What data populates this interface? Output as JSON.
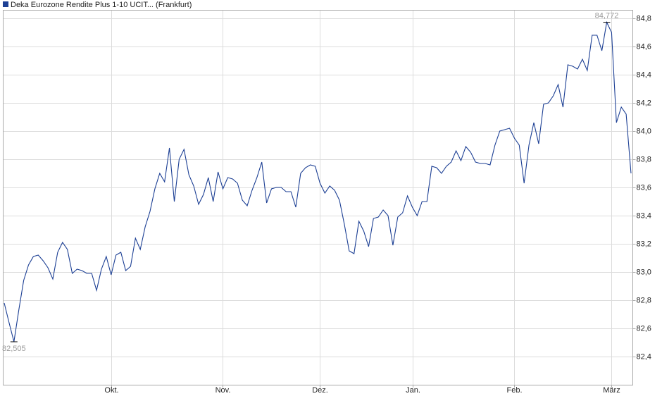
{
  "chart_data": {
    "type": "line",
    "series": [
      {
        "name": "Deka Eurozone Rendite Plus 1-10 UCIT... (Frankfurt)",
        "color": "#1c3f94",
        "values": [
          82.78,
          82.64,
          82.505,
          82.73,
          82.94,
          83.05,
          83.11,
          83.12,
          83.08,
          83.03,
          82.95,
          83.14,
          83.21,
          83.16,
          82.99,
          83.02,
          83.01,
          82.99,
          82.99,
          82.87,
          83.02,
          83.11,
          82.98,
          83.12,
          83.14,
          83.01,
          83.04,
          83.24,
          83.16,
          83.32,
          83.43,
          83.59,
          83.7,
          83.64,
          83.88,
          83.5,
          83.8,
          83.87,
          83.69,
          83.61,
          83.48,
          83.55,
          83.67,
          83.5,
          83.71,
          83.59,
          83.67,
          83.66,
          83.63,
          83.51,
          83.47,
          83.58,
          83.67,
          83.78,
          83.49,
          83.59,
          83.6,
          83.6,
          83.57,
          83.57,
          83.46,
          83.7,
          83.74,
          83.76,
          83.75,
          83.63,
          83.56,
          83.61,
          83.58,
          83.51,
          83.34,
          83.15,
          83.13,
          83.36,
          83.29,
          83.18,
          83.38,
          83.39,
          83.44,
          83.4,
          83.19,
          83.39,
          83.42,
          83.54,
          83.46,
          83.4,
          83.5,
          83.5,
          83.75,
          83.74,
          83.7,
          83.75,
          83.78,
          83.86,
          83.79,
          83.89,
          83.85,
          83.78,
          83.77,
          83.77,
          83.76,
          83.9,
          84.0,
          84.01,
          84.02,
          83.95,
          83.9,
          83.63,
          83.9,
          84.06,
          83.91,
          84.19,
          84.2,
          84.25,
          84.33,
          84.17,
          84.47,
          84.46,
          84.44,
          84.51,
          84.43,
          84.68,
          84.68,
          84.57,
          84.772,
          84.7,
          84.06,
          84.17,
          84.12,
          83.7
        ],
        "value_labels": [
          null,
          null,
          "82,505",
          null,
          null,
          null,
          null,
          null,
          null,
          null,
          null,
          null,
          null,
          null,
          null,
          null,
          null,
          null,
          null,
          null,
          null,
          null,
          null,
          null,
          null,
          null,
          null,
          null,
          null,
          null,
          null,
          null,
          null,
          null,
          null,
          null,
          null,
          null,
          null,
          null,
          null,
          null,
          null,
          null,
          null,
          null,
          null,
          null,
          null,
          null,
          null,
          null,
          null,
          null,
          null,
          null,
          null,
          null,
          null,
          null,
          null,
          null,
          null,
          null,
          null,
          null,
          null,
          null,
          null,
          null,
          null,
          null,
          null,
          null,
          null,
          null,
          null,
          null,
          null,
          null,
          null,
          null,
          null,
          null,
          null,
          null,
          null,
          null,
          null,
          null,
          null,
          null,
          null,
          null,
          null,
          null,
          null,
          null,
          null,
          null,
          null,
          null,
          null,
          null,
          null,
          null,
          null,
          null,
          null,
          null,
          null,
          null,
          null,
          null,
          null,
          null,
          null,
          null,
          null,
          null,
          null,
          null,
          null,
          null,
          "84,772",
          null,
          null,
          null,
          null,
          null
        ]
      }
    ],
    "categories": [
      null,
      null,
      null,
      null,
      null,
      null,
      null,
      null,
      null,
      null,
      null,
      null,
      null,
      null,
      null,
      null,
      null,
      null,
      null,
      null,
      null,
      null,
      "Okt.",
      null,
      null,
      null,
      null,
      null,
      null,
      null,
      null,
      null,
      null,
      null,
      null,
      null,
      null,
      null,
      null,
      null,
      null,
      null,
      null,
      null,
      null,
      "Nov.",
      null,
      null,
      null,
      null,
      null,
      null,
      null,
      null,
      null,
      null,
      null,
      null,
      null,
      null,
      null,
      null,
      null,
      null,
      null,
      "Dez.",
      null,
      null,
      null,
      null,
      null,
      null,
      null,
      null,
      null,
      null,
      null,
      null,
      null,
      null,
      null,
      null,
      null,
      null,
      "Jan.",
      null,
      null,
      null,
      null,
      null,
      null,
      null,
      null,
      null,
      null,
      null,
      null,
      null,
      null,
      null,
      null,
      null,
      null,
      null,
      null,
      "Feb.",
      null,
      null,
      null,
      null,
      null,
      null,
      null,
      null,
      null,
      null,
      null,
      null,
      null,
      null,
      null,
      null,
      null,
      null,
      null,
      "März",
      null,
      null,
      null,
      null
    ],
    "ylim": [
      82.2,
      84.86
    ],
    "yticks": [
      {
        "value": 82.4,
        "label": "82,4"
      },
      {
        "value": 82.6,
        "label": "82,6"
      },
      {
        "value": 82.8,
        "label": "82,8"
      },
      {
        "value": 83.0,
        "label": "83,0"
      },
      {
        "value": 83.2,
        "label": "83,2"
      },
      {
        "value": 83.4,
        "label": "83,4"
      },
      {
        "value": 83.6,
        "label": "83,6"
      },
      {
        "value": 83.8,
        "label": "83,8"
      },
      {
        "value": 84.0,
        "label": "84,0"
      },
      {
        "value": 84.2,
        "label": "84,2"
      },
      {
        "value": 84.4,
        "label": "84,4"
      },
      {
        "value": 84.6,
        "label": "84,6"
      },
      {
        "value": 84.8,
        "label": "84,8"
      }
    ],
    "grid": true
  }
}
